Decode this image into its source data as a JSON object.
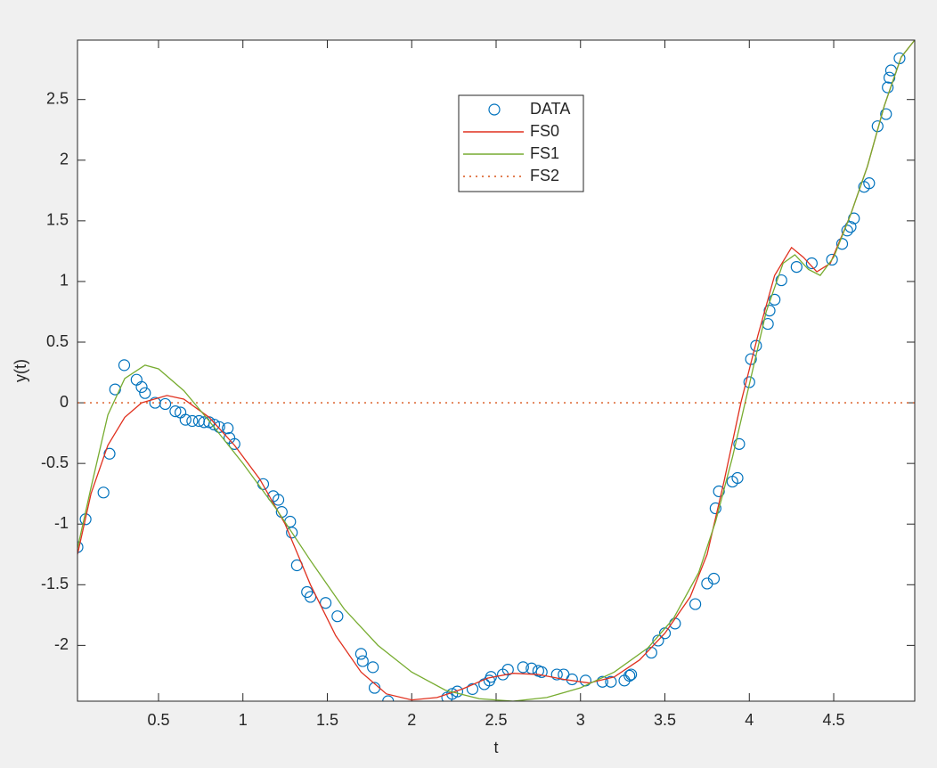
{
  "chart_data": {
    "type": "line",
    "x_label": "t",
    "y_label": "y(t)",
    "xlim": [
      0.02,
      4.98
    ],
    "ylim": [
      -2.46,
      2.99
    ],
    "xticks": [
      0.5,
      1,
      1.5,
      2,
      2.5,
      3,
      3.5,
      4,
      4.5
    ],
    "yticks": [
      -2,
      -1.5,
      -1,
      -0.5,
      0,
      0.5,
      1,
      1.5,
      2,
      2.5
    ],
    "legend": "top-center",
    "series": [
      {
        "name": "DATA",
        "color": "#0072bd",
        "mode": "markers",
        "x": [
          0.02,
          0.068,
          0.174,
          0.21,
          0.243,
          0.297,
          0.37,
          0.4,
          0.42,
          0.48,
          0.54,
          0.6,
          0.63,
          0.66,
          0.7,
          0.74,
          0.77,
          0.8,
          0.83,
          0.86,
          0.91,
          0.92,
          0.95,
          1.12,
          1.18,
          1.21,
          1.23,
          1.28,
          1.29,
          1.32,
          1.38,
          1.4,
          1.49,
          1.56,
          1.7,
          1.71,
          1.77,
          1.78,
          1.86,
          2.21,
          2.24,
          2.27,
          2.36,
          2.43,
          2.46,
          2.47,
          2.54,
          2.57,
          2.66,
          2.71,
          2.75,
          2.77,
          2.86,
          2.9,
          2.95,
          3.03,
          3.13,
          3.18,
          3.26,
          3.29,
          3.3,
          3.42,
          3.46,
          3.5,
          3.56,
          3.68,
          3.75,
          3.79,
          3.8,
          3.82,
          3.9,
          3.93,
          3.94,
          4.0,
          4.01,
          4.04,
          4.11,
          4.12,
          4.15,
          4.19,
          4.28,
          4.37,
          4.49,
          4.55,
          4.58,
          4.6,
          4.62,
          4.68,
          4.71,
          4.76,
          4.81,
          4.82,
          4.83,
          4.84,
          4.89
        ],
        "values": [
          -1.19,
          -0.96,
          -0.74,
          -0.42,
          0.11,
          0.31,
          0.19,
          0.13,
          0.08,
          0.0,
          -0.01,
          -0.07,
          -0.08,
          -0.14,
          -0.15,
          -0.15,
          -0.16,
          -0.16,
          -0.18,
          -0.2,
          -0.21,
          -0.29,
          -0.34,
          -0.67,
          -0.77,
          -0.8,
          -0.9,
          -0.98,
          -1.07,
          -1.34,
          -1.56,
          -1.6,
          -1.65,
          -1.76,
          -2.07,
          -2.13,
          -2.18,
          -2.35,
          -2.46,
          -2.43,
          -2.4,
          -2.38,
          -2.36,
          -2.32,
          -2.29,
          -2.26,
          -2.24,
          -2.2,
          -2.18,
          -2.19,
          -2.21,
          -2.22,
          -2.24,
          -2.24,
          -2.28,
          -2.29,
          -2.3,
          -2.3,
          -2.29,
          -2.25,
          -2.24,
          -2.06,
          -1.96,
          -1.9,
          -1.82,
          -1.66,
          -1.49,
          -1.45,
          -0.87,
          -0.73,
          -0.65,
          -0.62,
          -0.34,
          0.17,
          0.36,
          0.47,
          0.65,
          0.76,
          0.85,
          1.01,
          1.12,
          1.15,
          1.18,
          1.31,
          1.42,
          1.45,
          1.52,
          1.78,
          1.81,
          2.28,
          2.38,
          2.6,
          2.68,
          2.74,
          2.84
        ]
      },
      {
        "name": "FS0",
        "color": "#e0301e",
        "mode": "lines",
        "x": [
          0.02,
          0.1,
          0.2,
          0.3,
          0.4,
          0.55,
          0.65,
          0.8,
          0.95,
          1.1,
          1.25,
          1.4,
          1.55,
          1.7,
          1.85,
          2.0,
          2.15,
          2.3,
          2.45,
          2.6,
          2.75,
          2.9,
          3.05,
          3.2,
          3.35,
          3.5,
          3.65,
          3.75,
          3.85,
          3.95,
          4.05,
          4.15,
          4.25,
          4.32,
          4.4,
          4.48,
          4.6,
          4.7,
          4.8,
          4.9,
          4.98
        ],
        "values": [
          -1.25,
          -0.75,
          -0.35,
          -0.12,
          0.0,
          0.06,
          0.03,
          -0.12,
          -0.35,
          -0.63,
          -1.0,
          -1.5,
          -1.92,
          -2.22,
          -2.4,
          -2.45,
          -2.43,
          -2.36,
          -2.27,
          -2.23,
          -2.24,
          -2.28,
          -2.31,
          -2.26,
          -2.12,
          -1.9,
          -1.6,
          -1.25,
          -0.65,
          0.0,
          0.55,
          1.05,
          1.28,
          1.2,
          1.08,
          1.15,
          1.55,
          1.95,
          2.45,
          2.85,
          2.99
        ]
      },
      {
        "name": "FS1",
        "color": "#77ac30",
        "mode": "lines",
        "x": [
          0.02,
          0.1,
          0.2,
          0.3,
          0.42,
          0.5,
          0.65,
          0.8,
          1.0,
          1.2,
          1.4,
          1.6,
          1.8,
          2.0,
          2.2,
          2.4,
          2.6,
          2.8,
          3.0,
          3.2,
          3.4,
          3.55,
          3.7,
          3.8,
          3.9,
          4.0,
          4.1,
          4.2,
          4.27,
          4.35,
          4.42,
          4.5,
          4.6,
          4.7,
          4.8,
          4.9,
          4.98
        ],
        "values": [
          -1.2,
          -0.7,
          -0.1,
          0.2,
          0.31,
          0.28,
          0.1,
          -0.15,
          -0.5,
          -0.88,
          -1.3,
          -1.7,
          -2.0,
          -2.22,
          -2.37,
          -2.44,
          -2.46,
          -2.43,
          -2.35,
          -2.22,
          -2.02,
          -1.78,
          -1.4,
          -0.98,
          -0.45,
          0.15,
          0.75,
          1.15,
          1.22,
          1.1,
          1.05,
          1.2,
          1.55,
          1.95,
          2.45,
          2.85,
          2.99
        ]
      },
      {
        "name": "FS2",
        "color": "#d95319",
        "mode": "lines",
        "dash": "dotted",
        "x": [
          0.02,
          4.98
        ],
        "values": [
          0,
          0
        ]
      }
    ]
  }
}
